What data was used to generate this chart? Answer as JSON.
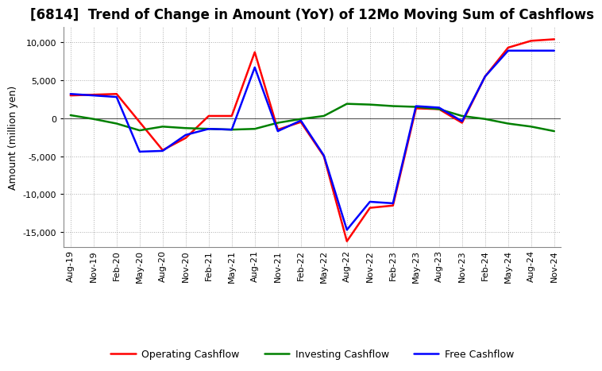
{
  "title": "[6814]  Trend of Change in Amount (YoY) of 12Mo Moving Sum of Cashflows",
  "ylabel": "Amount (million yen)",
  "x_labels": [
    "Aug-19",
    "Nov-19",
    "Feb-20",
    "May-20",
    "Aug-20",
    "Nov-20",
    "Feb-21",
    "May-21",
    "Aug-21",
    "Nov-21",
    "Feb-22",
    "May-22",
    "Aug-22",
    "Nov-22",
    "Feb-23",
    "May-23",
    "Aug-23",
    "Nov-23",
    "Feb-24",
    "May-24",
    "Aug-24",
    "Nov-24"
  ],
  "operating": [
    3000,
    3100,
    3200,
    -500,
    -4200,
    -2600,
    300,
    300,
    8700,
    -1500,
    -500,
    -5000,
    -16200,
    -11800,
    -11500,
    1300,
    1200,
    -600,
    5500,
    9300,
    10200,
    10400
  ],
  "investing": [
    400,
    -100,
    -700,
    -1600,
    -1100,
    -1300,
    -1400,
    -1500,
    -1400,
    -600,
    -100,
    300,
    1900,
    1800,
    1600,
    1500,
    1200,
    300,
    -100,
    -700,
    -1100,
    -1700
  ],
  "free": [
    3200,
    3000,
    2800,
    -4400,
    -4300,
    -2200,
    -1400,
    -1500,
    6700,
    -1700,
    -300,
    -4900,
    -14700,
    -11000,
    -11200,
    1600,
    1400,
    -400,
    5500,
    8900,
    8900,
    8900
  ],
  "ylim": [
    -17000,
    12000
  ],
  "yticks": [
    -15000,
    -10000,
    -5000,
    0,
    5000,
    10000
  ],
  "colors": {
    "operating": "#FF0000",
    "investing": "#008000",
    "free": "#0000FF"
  },
  "line_width": 1.8,
  "bg_color": "#FFFFFF",
  "grid_color": "#999999",
  "title_fontsize": 12,
  "axis_fontsize": 9,
  "tick_fontsize": 8,
  "legend_fontsize": 9
}
